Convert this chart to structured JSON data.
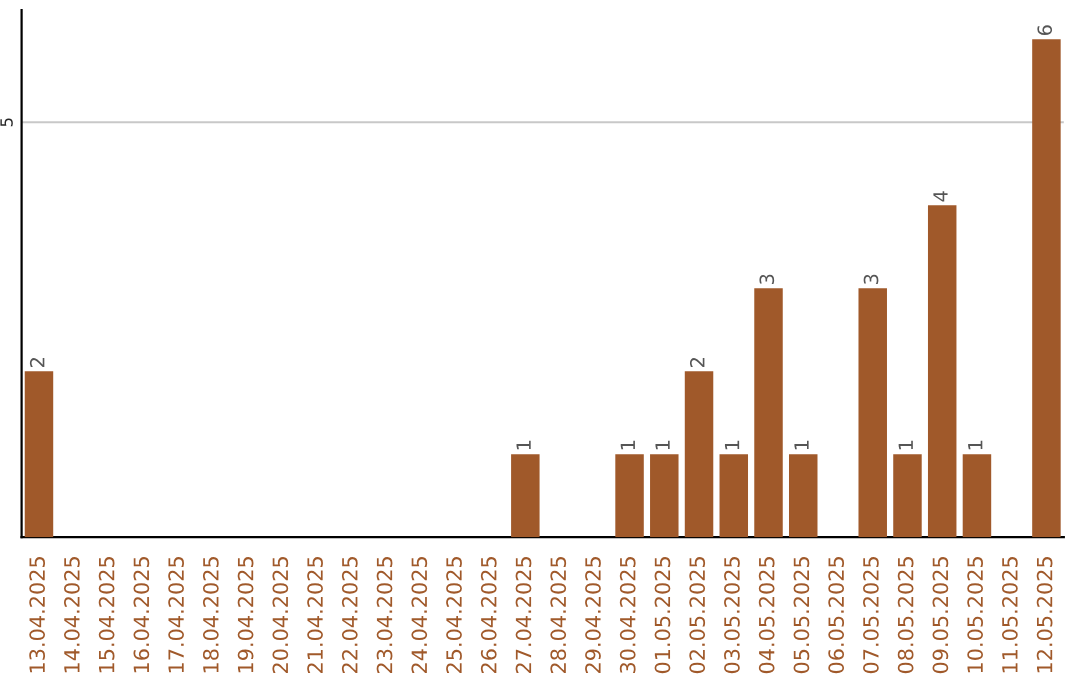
{
  "chart_data": {
    "type": "bar",
    "categories": [
      "13.04.2025",
      "14.04.2025",
      "15.04.2025",
      "16.04.2025",
      "17.04.2025",
      "18.04.2025",
      "19.04.2025",
      "20.04.2025",
      "21.04.2025",
      "22.04.2025",
      "23.04.2025",
      "24.04.2025",
      "25.04.2025",
      "26.04.2025",
      "27.04.2025",
      "28.04.2025",
      "29.04.2025",
      "30.04.2025",
      "01.05.2025",
      "02.05.2025",
      "03.05.2025",
      "04.05.2025",
      "05.05.2025",
      "06.05.2025",
      "07.05.2025",
      "08.05.2025",
      "09.05.2025",
      "10.05.2025",
      "11.05.2025",
      "12.05.2025"
    ],
    "values": [
      2,
      0,
      0,
      0,
      0,
      0,
      0,
      0,
      0,
      0,
      0,
      0,
      0,
      0,
      1,
      0,
      0,
      1,
      1,
      2,
      1,
      3,
      1,
      0,
      3,
      1,
      4,
      1,
      0,
      6
    ],
    "value_labels": [
      "2",
      null,
      null,
      null,
      null,
      null,
      null,
      null,
      null,
      null,
      null,
      null,
      null,
      null,
      "1",
      null,
      null,
      "1",
      "1",
      "2",
      "1",
      "3",
      "1",
      null,
      "3",
      "1",
      "4",
      "1",
      null,
      "6"
    ],
    "color": "#a0592a",
    "ylim": [
      0,
      6.35
    ],
    "yticks": [
      5
    ],
    "grid": "y"
  }
}
